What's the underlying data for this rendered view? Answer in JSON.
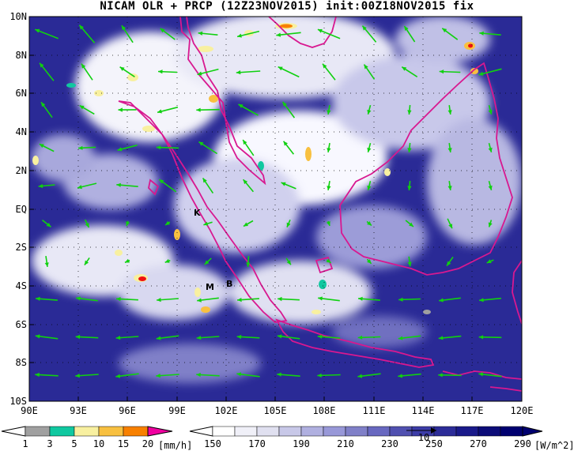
{
  "title": "NICAM OLR + PRCP (12Z23NOV2015) init:00Z18NOV2015 fix",
  "axes": {
    "x_ticks": [
      "90E",
      "93E",
      "96E",
      "99E",
      "102E",
      "105E",
      "108E",
      "111E",
      "114E",
      "117E",
      "120E"
    ],
    "y_ticks": [
      "10N",
      "8N",
      "6N",
      "4N",
      "2N",
      "EQ",
      "2S",
      "4S",
      "6S",
      "8S",
      "10S"
    ]
  },
  "markers": [
    {
      "label": "K",
      "lon": 101.5,
      "lat": -0.3
    },
    {
      "label": "M",
      "lon": 100.6,
      "lat": -4.4
    },
    {
      "label": "B",
      "lon": 102.3,
      "lat": -4.2
    }
  ],
  "precip_colorbar": {
    "labels": [
      "1",
      "3",
      "5",
      "10",
      "15",
      "20"
    ],
    "unit": "[mm/h]",
    "colors": [
      "#a0a0a0",
      "#10c8a0",
      "#f8f0a0",
      "#f8c040",
      "#f88000",
      "#f01010",
      "#f000a0"
    ]
  },
  "olr_colorbar": {
    "labels": [
      "150",
      "170",
      "190",
      "210",
      "230",
      "250",
      "270",
      "290"
    ],
    "unit": "[W/m^2]",
    "vector_ref": "10",
    "colors": [
      "#ffffff",
      "#f0f0f8",
      "#e0e0f0",
      "#c8c8e8",
      "#b0b0e0",
      "#9898d8",
      "#8080c8",
      "#6868c0",
      "#5050b0",
      "#3c3ca8",
      "#2c2c98",
      "#1a1a8a",
      "#0c0c78",
      "#000070"
    ]
  },
  "colors": {
    "coast": "#d81890",
    "wind": "#10d010",
    "olr_dark": "#1a1a8a"
  }
}
